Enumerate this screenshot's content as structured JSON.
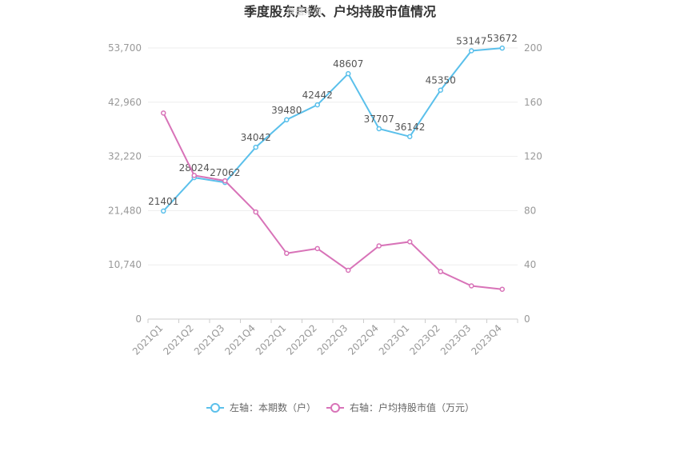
{
  "chart_data": {
    "type": "line",
    "title": "季度股东户数、户均持股市值情况",
    "watermark": "数据来源",
    "categories": [
      "2021Q1",
      "2021Q2",
      "2021Q3",
      "2021Q4",
      "2022Q1",
      "2022Q2",
      "2022Q3",
      "2022Q4",
      "2023Q1",
      "2023Q2",
      "2023Q3",
      "2023Q4"
    ],
    "left_axis": {
      "ylim": [
        0,
        53700
      ],
      "ticks": [
        "0",
        "10,740",
        "21,480",
        "32,220",
        "42,960",
        "53,700"
      ]
    },
    "right_axis": {
      "ylim": [
        0,
        200
      ],
      "ticks": [
        "0",
        "40",
        "80",
        "120",
        "160",
        "200"
      ]
    },
    "series": [
      {
        "name": "左轴：本期数（户）",
        "axis": "left",
        "color": "#5bc0eb",
        "values": [
          21401,
          28024,
          27062,
          34042,
          39480,
          42442,
          48607,
          37707,
          36142,
          45350,
          53147,
          53672
        ],
        "labels": [
          "21401",
          "28024",
          "27062",
          "34042",
          "39480",
          "42442",
          "48607",
          "37707",
          "36142",
          "45350",
          "53147",
          "53672"
        ]
      },
      {
        "name": "右轴：户均持股市值（万元）",
        "axis": "right",
        "color": "#d873b8",
        "values": [
          152,
          106,
          102,
          79,
          48.5,
          52,
          36,
          54,
          57,
          35,
          24.5,
          22
        ]
      }
    ],
    "grid": true,
    "legend_position": "bottom"
  }
}
